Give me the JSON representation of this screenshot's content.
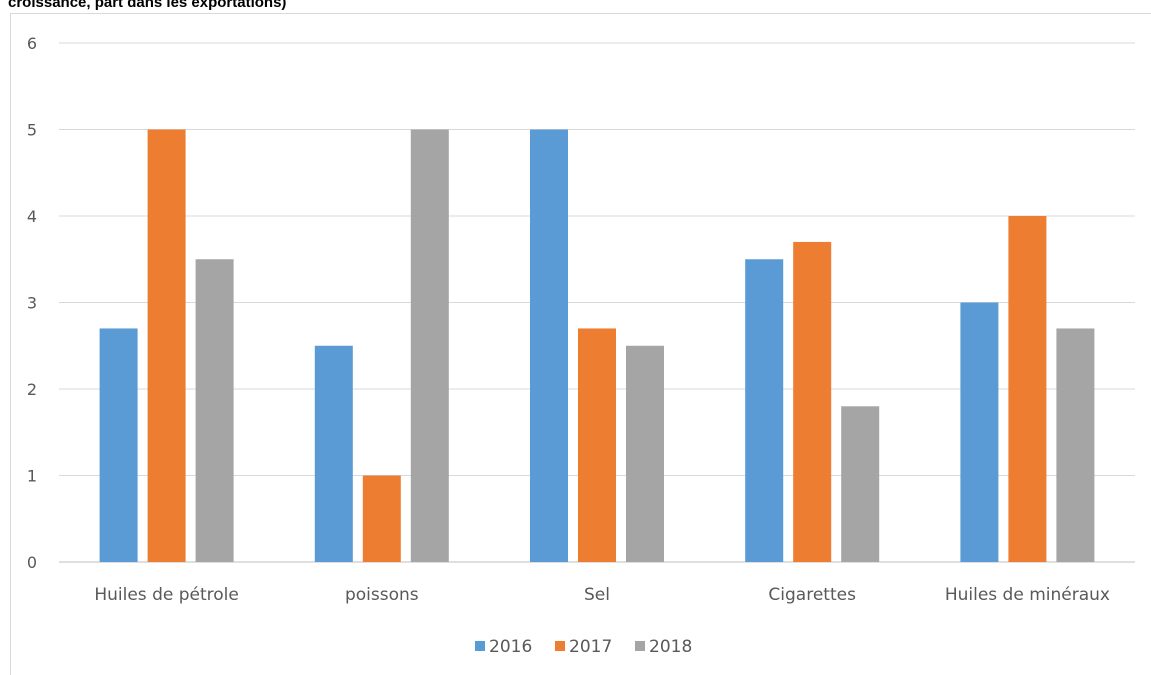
{
  "header": {
    "title": "croissance, part dans les exportations)"
  },
  "chart_data": {
    "type": "bar",
    "title": "",
    "xlabel": "",
    "ylabel": "",
    "categories": [
      "Huiles de pétrole",
      "poissons",
      "Sel",
      "Cigarettes",
      "Huiles de minéraux"
    ],
    "series": [
      {
        "name": "2016",
        "color": "#5b9bd5",
        "values": [
          2.7,
          2.5,
          5,
          3.5,
          3
        ]
      },
      {
        "name": "2017",
        "color": "#ed7d31",
        "values": [
          5,
          1,
          2.7,
          3.7,
          4
        ]
      },
      {
        "name": "2018",
        "color": "#a5a5a5",
        "values": [
          3.5,
          5,
          2.5,
          1.8,
          2.7
        ]
      }
    ],
    "ylim": [
      0,
      6
    ],
    "yticks": [
      "0",
      "1",
      "2",
      "3",
      "4",
      "5",
      "6"
    ],
    "grid": true,
    "legend": "bottom"
  }
}
